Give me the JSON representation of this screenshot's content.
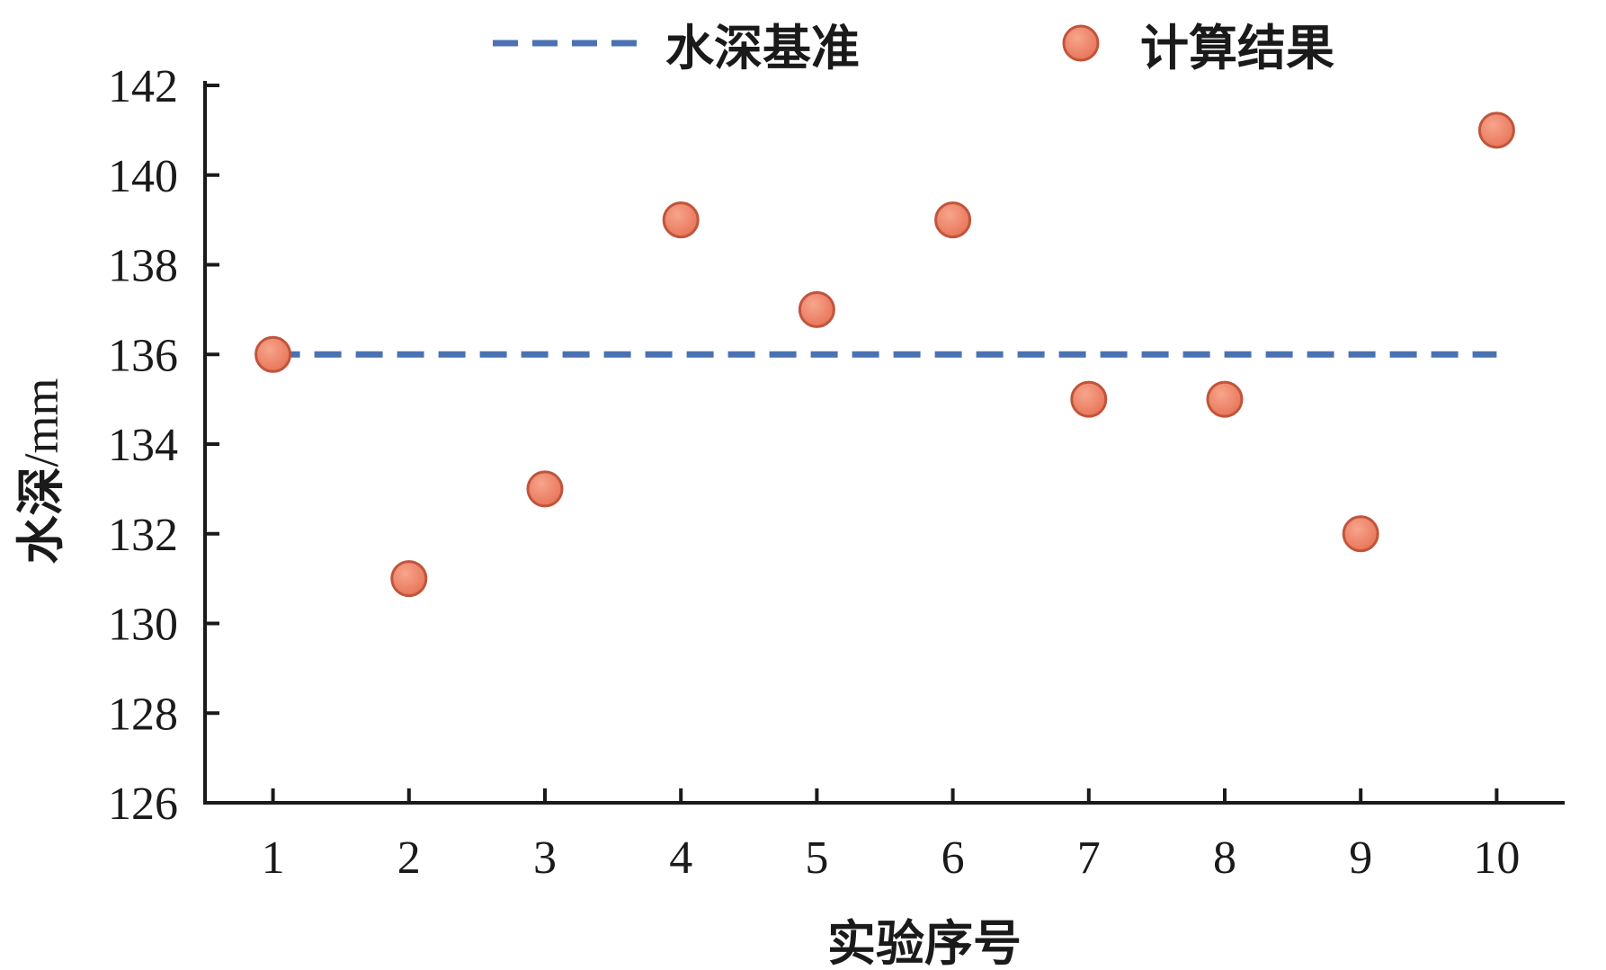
{
  "chart_data": {
    "type": "scatter",
    "xlabel": "实验序号",
    "ylabel_cjk": "水深",
    "ylabel_unit": "/mm",
    "x": [
      1,
      2,
      3,
      4,
      5,
      6,
      7,
      8,
      9,
      10
    ],
    "xticks": [
      "1",
      "2",
      "3",
      "4",
      "5",
      "6",
      "7",
      "8",
      "9",
      "10"
    ],
    "ylim": [
      126,
      142
    ],
    "yticks": [
      "126",
      "128",
      "130",
      "132",
      "134",
      "136",
      "138",
      "140",
      "142"
    ],
    "grid": false,
    "legend_position": "top",
    "series": [
      {
        "name": "水深基准",
        "kind": "line",
        "style": "dashed",
        "color": "#4a72b2",
        "values": [
          136,
          136,
          136,
          136,
          136,
          136,
          136,
          136,
          136,
          136
        ]
      },
      {
        "name": "计算结果",
        "kind": "scatter",
        "color": "#e8765a",
        "edge_color": "#c0553c",
        "values": [
          136,
          131,
          133,
          139,
          137,
          139,
          135,
          135,
          132,
          141
        ]
      }
    ]
  }
}
